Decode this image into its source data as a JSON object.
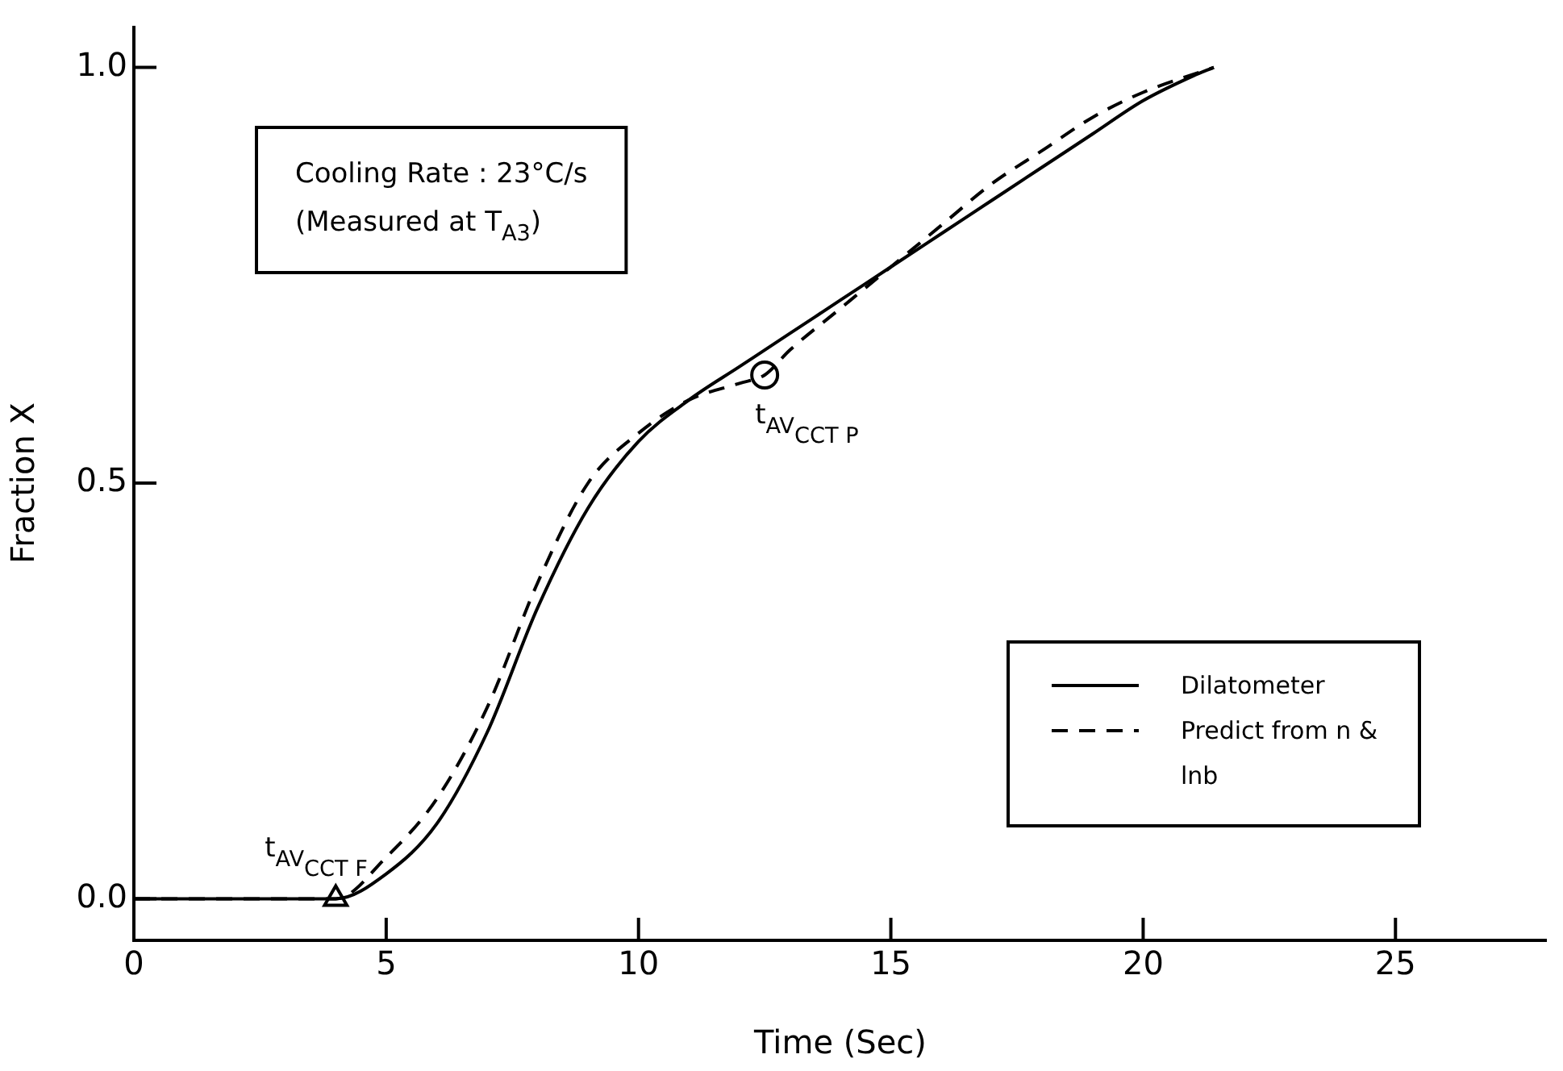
{
  "chart_data": {
    "type": "line",
    "xlabel": "Time (Sec)",
    "ylabel": "Fraction X",
    "xlim": [
      0,
      28
    ],
    "ylim": [
      -0.05,
      1.05
    ],
    "xticks": [
      0,
      5,
      10,
      15,
      20,
      25
    ],
    "yticks": [
      {
        "value": 0,
        "label": "0.0"
      },
      {
        "value": 0.5,
        "label": "0.5"
      },
      {
        "value": 1,
        "label": "1.0"
      }
    ],
    "legend": "bottom right",
    "marker": "none",
    "series": [
      {
        "name": "Dilatometer",
        "color": "#000000",
        "line_style": "solid",
        "x": [
          0,
          4,
          5,
          6,
          7,
          8,
          9,
          10,
          11,
          12,
          13,
          14,
          15,
          16,
          17,
          18,
          19,
          20,
          21,
          21.4
        ],
        "values": [
          0,
          0,
          0.03,
          0.09,
          0.2,
          0.35,
          0.47,
          0.55,
          0.6,
          0.64,
          0.68,
          0.72,
          0.76,
          0.8,
          0.84,
          0.88,
          0.92,
          0.96,
          0.99,
          1.0
        ]
      },
      {
        "name": "Predict from n & lnb",
        "color": "#000000",
        "line_style": "dashed",
        "x": [
          0,
          4,
          5,
          6,
          7,
          8,
          9,
          10,
          11,
          12,
          12.5,
          13,
          14,
          15,
          16,
          17,
          18,
          19,
          20,
          21.4
        ],
        "values": [
          0,
          0,
          0.05,
          0.12,
          0.23,
          0.38,
          0.5,
          0.56,
          0.6,
          0.62,
          0.63,
          0.66,
          0.71,
          0.76,
          0.81,
          0.86,
          0.9,
          0.94,
          0.97,
          1.0
        ]
      },
      {
        "type": "scatter",
        "color": "#000000",
        "marker": "triangle",
        "x": [
          4
        ],
        "values": [
          0
        ]
      },
      {
        "type": "scatter",
        "color": "#000000",
        "marker": "circle",
        "x": [
          12.5
        ],
        "values": [
          0.63
        ]
      }
    ],
    "annotations": [
      "Cooling Rate : 23°C/s",
      "(Measured at T$_{A3}$)",
      {
        "text": "t$_{AV}$$_{CCT F}$",
        "x": 4,
        "y": 0
      },
      {
        "text": "t$_{AV}$$_{CCT P}$",
        "x": 12.5,
        "y": 0.63
      }
    ]
  }
}
